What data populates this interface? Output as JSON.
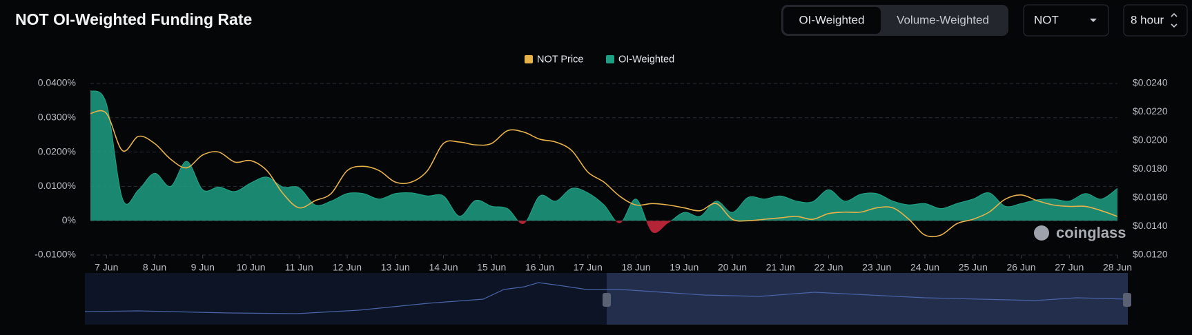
{
  "header": {
    "modes": [
      "OI-Weighted",
      "Volume-Weighted"
    ],
    "symbol": "NOT",
    "interval": "8 hour",
    "watermark": "coinglass"
  },
  "chart_data": {
    "type": "area",
    "title": "NOT OI-Weighted Funding Rate",
    "categories": [
      null,
      "7 Jun",
      null,
      null,
      "8 Jun",
      null,
      null,
      "9 Jun",
      null,
      null,
      "10 Jun",
      null,
      null,
      "11 Jun",
      null,
      null,
      "12 Jun",
      null,
      null,
      "13 Jun",
      null,
      null,
      "14 Jun",
      null,
      null,
      "15 Jun",
      null,
      null,
      "16 Jun",
      null,
      null,
      "17 Jun",
      null,
      null,
      "18 Jun",
      null,
      null,
      "19 Jun",
      null,
      null,
      "20 Jun",
      null,
      null,
      "21 Jun",
      null,
      null,
      "22 Jun",
      null,
      null,
      "23 Jun",
      null,
      null,
      "24 Jun",
      null,
      null,
      "25 Jun",
      null,
      null,
      "26 Jun",
      null,
      null,
      "27 Jun",
      null,
      null,
      "28 Jun"
    ],
    "series": [
      {
        "name": "NOT Price",
        "type": "line",
        "axis": "y2",
        "color": "#e8b24a",
        "values": [
          0.0219,
          0.0219,
          0.0193,
          0.0203,
          0.0198,
          0.0187,
          0.0181,
          0.019,
          0.0192,
          0.0185,
          0.0186,
          0.0179,
          0.0163,
          0.0153,
          0.0158,
          0.0163,
          0.0179,
          0.0182,
          0.0179,
          0.0171,
          0.0171,
          0.0179,
          0.0198,
          0.0199,
          0.0197,
          0.0198,
          0.0207,
          0.0206,
          0.0201,
          0.0199,
          0.0193,
          0.0178,
          0.0171,
          0.0161,
          0.0155,
          0.0156,
          0.0155,
          0.0153,
          0.0151,
          0.0156,
          0.0145,
          0.0144,
          0.0145,
          0.0146,
          0.0147,
          0.0145,
          0.0149,
          0.015,
          0.015,
          0.0153,
          0.0153,
          0.0145,
          0.0134,
          0.0134,
          0.0142,
          0.0145,
          0.015,
          0.0159,
          0.0162,
          0.0158,
          0.0155,
          0.0154,
          0.0154,
          0.0151,
          0.0147
        ]
      },
      {
        "name": "OI-Weighted",
        "type": "area",
        "color": "#1e9f83",
        "negative_color": "#c9283c",
        "values": [
          0.0379,
          0.034,
          0.0063,
          0.009,
          0.0138,
          0.01,
          0.0173,
          0.009,
          0.0098,
          0.0085,
          0.011,
          0.0127,
          0.0098,
          0.0096,
          0.0046,
          0.0057,
          0.0079,
          0.0079,
          0.0063,
          0.0079,
          0.0081,
          0.0072,
          0.0072,
          0.0013,
          0.0059,
          0.0042,
          0.0035,
          -0.0009,
          0.0072,
          0.0057,
          0.0094,
          0.0081,
          0.0046,
          -0.0007,
          0.0063,
          -0.0033,
          -0.0007,
          0.0024,
          0.0013,
          0.0057,
          0.0024,
          0.0068,
          0.0063,
          0.0072,
          0.0057,
          0.0055,
          0.009,
          0.0057,
          0.0077,
          0.0079,
          0.0057,
          0.0046,
          0.005,
          0.0035,
          0.005,
          0.0063,
          0.0081,
          0.0042,
          0.005,
          0.0061,
          0.0063,
          0.0057,
          0.0079,
          0.0063,
          0.0094
        ]
      }
    ],
    "ylim": [
      -0.01,
      0.04
    ],
    "yticks": [
      {
        "value": -0.01,
        "label": "-0.0100%"
      },
      {
        "value": 0,
        "label": "0%"
      },
      {
        "value": 0.01,
        "label": "0.0100%"
      },
      {
        "value": 0.02,
        "label": "0.0200%"
      },
      {
        "value": 0.03,
        "label": "0.0300%"
      },
      {
        "value": 0.04,
        "label": "0.0400%"
      }
    ],
    "y2lim": [
      0.012,
      0.024
    ],
    "y2ticks": [
      {
        "value": 0.012,
        "label": "$0.0120"
      },
      {
        "value": 0.014,
        "label": "$0.0140"
      },
      {
        "value": 0.016,
        "label": "$0.0160"
      },
      {
        "value": 0.018,
        "label": "$0.0180"
      },
      {
        "value": 0.02,
        "label": "$0.0200"
      },
      {
        "value": 0.022,
        "label": "$0.0220"
      },
      {
        "value": 0.024,
        "label": "$0.0240"
      }
    ],
    "grid": true,
    "legend": "top"
  }
}
